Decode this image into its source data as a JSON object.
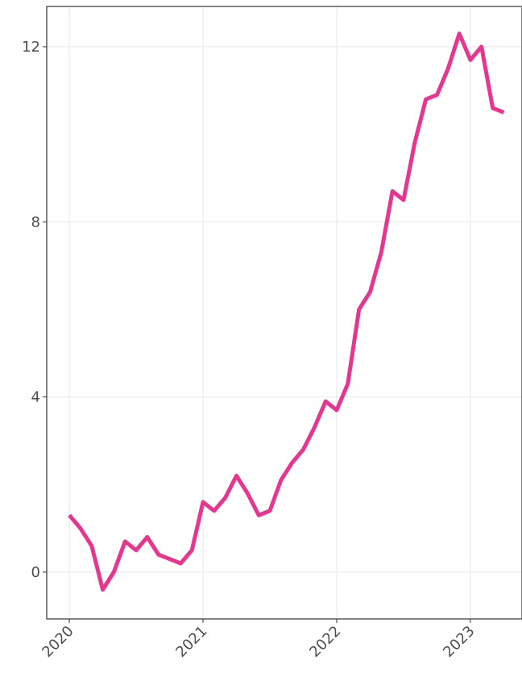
{
  "chart_data": {
    "type": "line",
    "x": [
      2020,
      2020.083,
      2020.167,
      2020.25,
      2020.333,
      2020.417,
      2020.5,
      2020.583,
      2020.667,
      2020.75,
      2020.833,
      2020.917,
      2021,
      2021.083,
      2021.167,
      2021.25,
      2021.333,
      2021.417,
      2021.5,
      2021.583,
      2021.667,
      2021.75,
      2021.833,
      2021.917,
      2022,
      2022.083,
      2022.167,
      2022.25,
      2022.333,
      2022.417,
      2022.5,
      2022.583,
      2022.667,
      2022.75,
      2022.833,
      2022.917,
      2023,
      2023.083,
      2023.167,
      2023.25
    ],
    "series": [
      {
        "color": "#e8358f",
        "values": [
          1.3,
          1.0,
          0.6,
          -0.4,
          0.0,
          0.7,
          0.5,
          0.8,
          0.4,
          0.3,
          0.2,
          0.5,
          1.6,
          1.4,
          1.7,
          2.2,
          1.8,
          1.3,
          1.4,
          2.1,
          2.5,
          2.8,
          3.3,
          3.9,
          3.7,
          4.3,
          6.0,
          6.4,
          7.3,
          8.7,
          8.5,
          9.8,
          10.8,
          10.9,
          11.5,
          12.3,
          11.7,
          12.0,
          10.6,
          10.5
        ]
      }
    ],
    "xlim": [
      2019.831,
      2023.386
    ],
    "xticks": [
      2020,
      2021,
      2022,
      2023
    ],
    "ylim": [
      -1.07,
      12.92
    ],
    "yticks": [
      0,
      4,
      8,
      12
    ],
    "grid": true
  }
}
